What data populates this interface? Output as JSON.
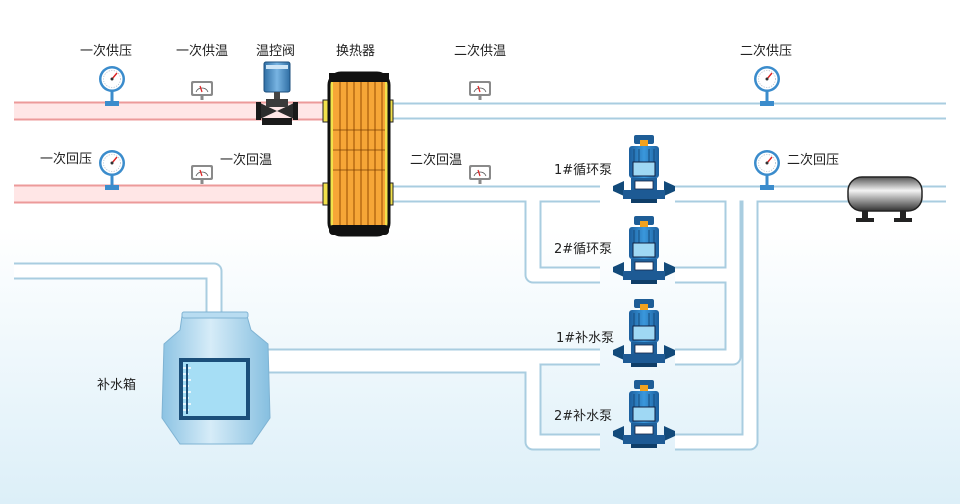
{
  "colors": {
    "primary_pipe_fill": "#ffe6e6",
    "primary_pipe_edge": "#ec9a9a",
    "secondary_pipe_fill": "#ffffff",
    "secondary_pipe_edge": "#a9cde0",
    "hx_core": "#f6a637",
    "hx_frame": "#f2e14b",
    "pump_motor": "#2b7fc6",
    "tank": "#aad4ee"
  },
  "labels": {
    "p1_supply_pressure": "一次供压",
    "p1_supply_temp": "一次供温",
    "control_valve": "温控阀",
    "heat_exchanger": "换热器",
    "s2_supply_temp": "二次供温",
    "s2_supply_pressure": "二次供压",
    "p1_return_pressure": "一次回压",
    "p1_return_temp": "一次回温",
    "s2_return_temp": "二次回温",
    "circ_pump_1": "1#循环泵",
    "s2_return_pressure": "二次回压",
    "circ_pump_2": "2#循环泵",
    "makeup_pump_1": "1#补水泵",
    "makeup_tank": "补水箱",
    "makeup_pump_2": "2#补水泵"
  }
}
